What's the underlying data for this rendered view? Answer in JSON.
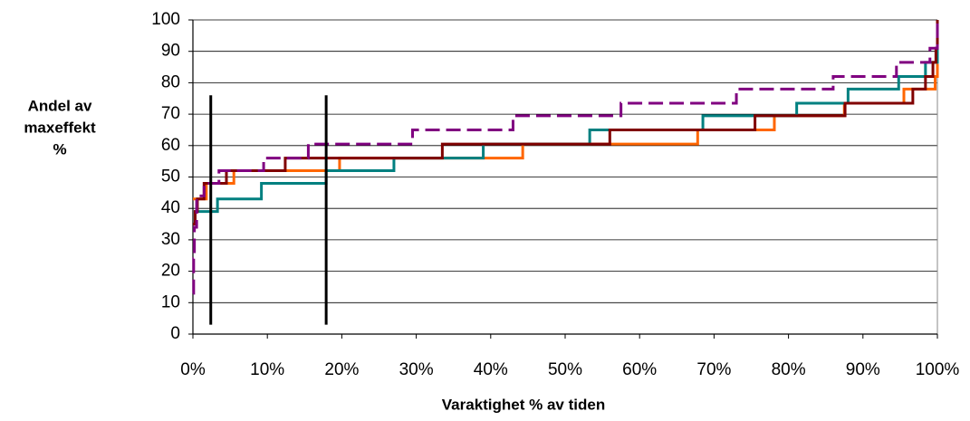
{
  "chart_data": {
    "type": "line",
    "step": "post",
    "ylabel_lines": [
      "Andel av",
      "maxeffekt",
      "%"
    ],
    "xlabel": "Varaktighet % av tiden",
    "xlim": [
      0,
      100
    ],
    "xticks": [
      {
        "value": 0,
        "label": "0%"
      },
      {
        "value": 10,
        "label": "10%"
      },
      {
        "value": 20,
        "label": "20%"
      },
      {
        "value": 30,
        "label": "30%"
      },
      {
        "value": 40,
        "label": "40%"
      },
      {
        "value": 50,
        "label": "50%"
      },
      {
        "value": 60,
        "label": "60%"
      },
      {
        "value": 70,
        "label": "70%"
      },
      {
        "value": 80,
        "label": "80%"
      },
      {
        "value": 90,
        "label": "90%"
      },
      {
        "value": 100,
        "label": "100%"
      }
    ],
    "ylim": [
      0,
      100
    ],
    "yticks": [
      0,
      10,
      20,
      30,
      40,
      50,
      60,
      70,
      80,
      90,
      100
    ],
    "grid": true,
    "series": [
      {
        "color": "#ff6600",
        "dash": false,
        "x": [
          0,
          1.8,
          5.5,
          19.7,
          44.3,
          67.8,
          78.1,
          87.5,
          95.5,
          99.7,
          100
        ],
        "values": [
          43,
          48,
          52,
          56,
          60.5,
          65,
          69.5,
          73.5,
          78,
          82,
          86
        ]
      },
      {
        "color": "#008080",
        "dash": false,
        "x": [
          0,
          0.3,
          3.3,
          9.2,
          17.9,
          27,
          39,
          53.3,
          68.5,
          81.1,
          88,
          94.8,
          98.4,
          100
        ],
        "values": [
          35,
          39,
          43,
          48,
          52,
          56,
          60.5,
          65,
          69.5,
          73.5,
          78,
          82,
          86.5,
          91
        ]
      },
      {
        "color": "#800000",
        "dash": false,
        "x": [
          0,
          0.3,
          0.6,
          1.5,
          4.5,
          12.4,
          33.5,
          56,
          75.5,
          87.6,
          96.7,
          98.4,
          99.4,
          99.8,
          100
        ],
        "values": [
          35,
          39,
          43,
          48,
          52,
          56,
          60.5,
          65,
          69.5,
          73.5,
          78,
          82,
          86.5,
          91,
          100
        ]
      },
      {
        "color": "#800080",
        "dash": true,
        "x": [
          0,
          0.1,
          0.2,
          0.5,
          1.5,
          3.5,
          9.5,
          15.5,
          29.5,
          43,
          57.5,
          73,
          86,
          94.5,
          99,
          100
        ],
        "values": [
          13,
          24,
          34,
          44,
          48,
          52,
          56,
          60.5,
          65,
          69.5,
          73.5,
          78,
          82,
          86.5,
          91,
          100
        ]
      }
    ],
    "vertical_lines": [
      {
        "x": 2.4,
        "ymin": 3,
        "ymax": 76
      },
      {
        "x": 17.9,
        "ymin": 3,
        "ymax": 76
      }
    ],
    "vline_color": "#000000"
  }
}
